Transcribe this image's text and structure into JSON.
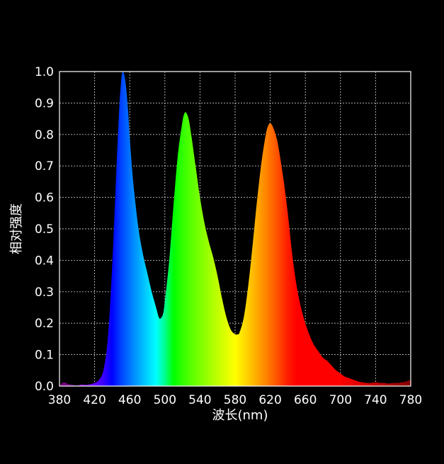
{
  "chart_data": {
    "type": "area",
    "title": "",
    "xlabel": "波长(nm)",
    "ylabel": "相对强度",
    "xlim": [
      380,
      780
    ],
    "ylim": [
      0,
      1
    ],
    "x_ticks": [
      "380",
      "420",
      "460",
      "500",
      "540",
      "580",
      "620",
      "660",
      "700",
      "740",
      "780"
    ],
    "y_ticks": [
      "0.0",
      "0.1",
      "0.2",
      "0.3",
      "0.4",
      "0.5",
      "0.6",
      "0.7",
      "0.8",
      "0.9",
      "1.0"
    ],
    "grid": true,
    "colors": {
      "background": "#000000",
      "grid": "#ffffff",
      "axis": "#ffffff",
      "text": "#ffffff"
    },
    "fill": "spectral-wavelength-gradient",
    "series": [
      {
        "x": [
          380,
          385,
          390,
          395,
          400,
          405,
          410,
          415,
          420,
          425,
          430,
          435,
          440,
          445,
          448,
          450,
          452,
          455,
          458,
          460,
          463,
          465,
          470,
          475,
          480,
          485,
          490,
          493,
          495,
          498,
          500,
          505,
          510,
          515,
          520,
          522,
          524,
          527,
          530,
          535,
          540,
          545,
          550,
          555,
          560,
          565,
          570,
          575,
          580,
          583,
          585,
          590,
          595,
          600,
          605,
          610,
          615,
          618,
          620,
          622,
          625,
          628,
          630,
          635,
          640,
          645,
          650,
          655,
          660,
          665,
          670,
          675,
          680,
          685,
          690,
          695,
          700,
          705,
          710,
          715,
          720,
          725,
          730,
          735,
          740,
          745,
          750,
          755,
          760,
          765,
          770,
          775,
          780
        ],
        "y": [
          0.002,
          0.012,
          0.006,
          0.004,
          0.002,
          0.005,
          0.004,
          0.006,
          0.01,
          0.02,
          0.05,
          0.15,
          0.38,
          0.7,
          0.88,
          0.96,
          1.0,
          0.97,
          0.88,
          0.79,
          0.68,
          0.62,
          0.5,
          0.42,
          0.36,
          0.3,
          0.25,
          0.22,
          0.215,
          0.23,
          0.27,
          0.4,
          0.58,
          0.74,
          0.84,
          0.865,
          0.87,
          0.85,
          0.8,
          0.7,
          0.6,
          0.52,
          0.46,
          0.41,
          0.35,
          0.28,
          0.22,
          0.18,
          0.165,
          0.165,
          0.17,
          0.22,
          0.32,
          0.45,
          0.59,
          0.71,
          0.8,
          0.83,
          0.835,
          0.83,
          0.81,
          0.78,
          0.75,
          0.66,
          0.55,
          0.42,
          0.32,
          0.25,
          0.2,
          0.16,
          0.13,
          0.11,
          0.09,
          0.08,
          0.065,
          0.05,
          0.04,
          0.03,
          0.025,
          0.02,
          0.015,
          0.012,
          0.01,
          0.01,
          0.012,
          0.01,
          0.01,
          0.008,
          0.01,
          0.01,
          0.012,
          0.015,
          0.02
        ]
      }
    ]
  }
}
